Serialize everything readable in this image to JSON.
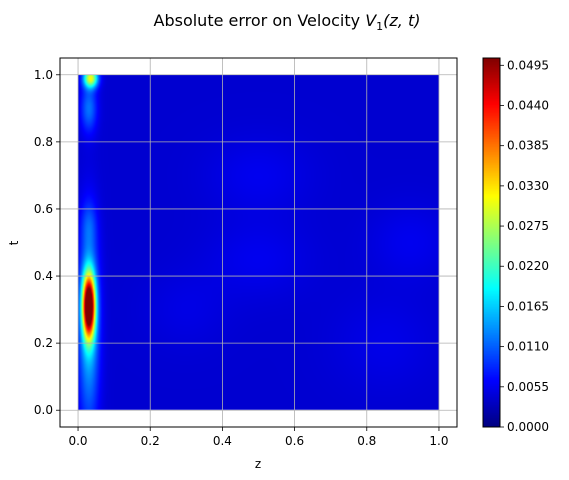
{
  "chart_data": {
    "type": "heatmap",
    "title": "Absolute error on Velocity V1(z, t)",
    "title_parts": {
      "prefix": "Absolute error on Velocity ",
      "var": "V",
      "sub": "1",
      "args": "(z, t)"
    },
    "xlabel": "z",
    "ylabel": "t",
    "xlim": [
      -0.05,
      1.05
    ],
    "ylim": [
      -0.05,
      1.05
    ],
    "xticks": [
      "0.0",
      "0.2",
      "0.4",
      "0.6",
      "0.8",
      "1.0"
    ],
    "yticks": [
      "0.0",
      "0.2",
      "0.4",
      "0.6",
      "0.8",
      "1.0"
    ],
    "grid": true,
    "colormap": "jet",
    "colorbar": {
      "min": 0.0,
      "max": 0.0505,
      "ticks": [
        "0.0000",
        "0.0055",
        "0.0110",
        "0.0165",
        "0.0220",
        "0.0275",
        "0.0330",
        "0.0385",
        "0.0440",
        "0.0495"
      ]
    },
    "domain": {
      "z": [
        0.0,
        1.0
      ],
      "t": [
        0.0,
        1.0
      ]
    },
    "background_level": 0.004,
    "features": [
      {
        "z": 0.03,
        "t": 0.31,
        "value": 0.0505,
        "sigma_z": 0.012,
        "sigma_t": 0.065
      },
      {
        "z": 0.03,
        "t": 0.25,
        "value": 0.012,
        "sigma_z": 0.02,
        "sigma_t": 0.2
      },
      {
        "z": 0.035,
        "t": 0.99,
        "value": 0.026,
        "sigma_z": 0.014,
        "sigma_t": 0.02
      },
      {
        "z": 0.03,
        "t": 0.9,
        "value": 0.008,
        "sigma_z": 0.016,
        "sigma_t": 0.05
      },
      {
        "z": 0.03,
        "t": 0.55,
        "value": 0.004,
        "sigma_z": 0.015,
        "sigma_t": 0.05
      },
      {
        "z": 0.5,
        "t": 0.7,
        "value": 0.0015,
        "sigma_z": 0.1,
        "sigma_t": 0.08
      },
      {
        "z": 0.5,
        "t": 0.45,
        "value": 0.0015,
        "sigma_z": 0.1,
        "sigma_t": 0.08
      },
      {
        "z": 0.92,
        "t": 0.5,
        "value": 0.0015,
        "sigma_z": 0.08,
        "sigma_t": 0.08
      },
      {
        "z": 0.85,
        "t": 0.2,
        "value": 0.0012,
        "sigma_z": 0.1,
        "sigma_t": 0.1
      },
      {
        "z": 0.3,
        "t": 0.3,
        "value": 0.001,
        "sigma_z": 0.08,
        "sigma_t": 0.08
      }
    ]
  }
}
